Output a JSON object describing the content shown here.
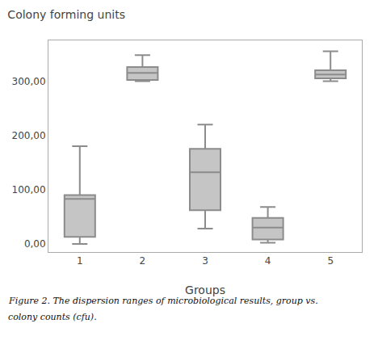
{
  "chart_data": {
    "type": "box",
    "title": "Colony forming units",
    "xlabel": "Groups",
    "annotations": [
      "Figure 2. The dispersion ranges of microbiological results, group vs.",
      "colony counts (cfu)."
    ],
    "categories": [
      "1",
      "2",
      "3",
      "4",
      "5"
    ],
    "boxes": [
      {
        "whislo": 0,
        "q1": 13,
        "med": 83,
        "q3": 90,
        "whishi": 180
      },
      {
        "whislo": 300,
        "q1": 302,
        "med": 315,
        "q3": 326,
        "whishi": 348
      },
      {
        "whislo": 28,
        "q1": 62,
        "med": 132,
        "q3": 175,
        "whishi": 220
      },
      {
        "whislo": 2,
        "q1": 8,
        "med": 30,
        "q3": 48,
        "whishi": 68
      },
      {
        "whislo": 300,
        "q1": 305,
        "med": 312,
        "q3": 320,
        "whishi": 355
      }
    ],
    "color": "#8c8c8c",
    "ylim": [
      -15,
      375
    ],
    "yticks": [
      {
        "value": 0,
        "label": "0,00"
      },
      {
        "value": 100,
        "label": "100,00"
      },
      {
        "value": 200,
        "label": "200,00"
      },
      {
        "value": 300,
        "label": "300,00"
      }
    ],
    "grid": false
  }
}
